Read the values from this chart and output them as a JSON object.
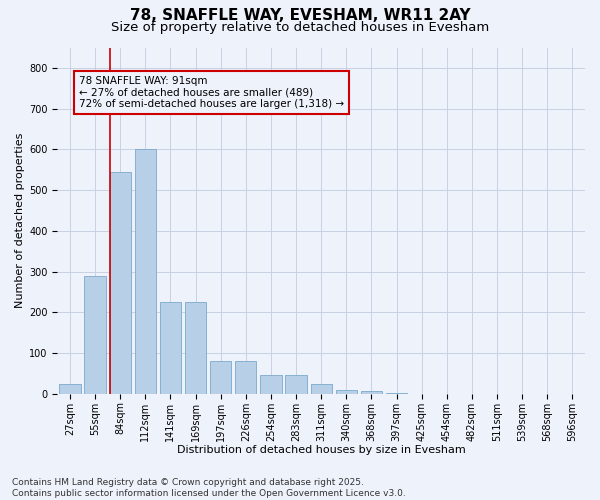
{
  "title": "78, SNAFFLE WAY, EVESHAM, WR11 2AY",
  "subtitle": "Size of property relative to detached houses in Evesham",
  "xlabel": "Distribution of detached houses by size in Evesham",
  "ylabel": "Number of detached properties",
  "categories": [
    "27sqm",
    "55sqm",
    "84sqm",
    "112sqm",
    "141sqm",
    "169sqm",
    "197sqm",
    "226sqm",
    "254sqm",
    "283sqm",
    "311sqm",
    "340sqm",
    "368sqm",
    "397sqm",
    "425sqm",
    "454sqm",
    "482sqm",
    "511sqm",
    "539sqm",
    "568sqm",
    "596sqm"
  ],
  "values": [
    25,
    290,
    545,
    600,
    225,
    225,
    80,
    80,
    45,
    45,
    25,
    10,
    7,
    3,
    0,
    0,
    0,
    0,
    0,
    0,
    0
  ],
  "bar_color": "#b8cfe8",
  "bar_edge_color": "#7aa8cc",
  "vline_x_index": 2,
  "vline_color": "#cc0000",
  "annotation_text": "78 SNAFFLE WAY: 91sqm\n← 27% of detached houses are smaller (489)\n72% of semi-detached houses are larger (1,318) →",
  "annotation_box_color": "#cc0000",
  "ylim": [
    0,
    850
  ],
  "yticks": [
    0,
    100,
    200,
    300,
    400,
    500,
    600,
    700,
    800
  ],
  "footer": "Contains HM Land Registry data © Crown copyright and database right 2025.\nContains public sector information licensed under the Open Government Licence v3.0.",
  "bg_color": "#eef2fb",
  "grid_color": "#c8d0e4",
  "title_fontsize": 11,
  "subtitle_fontsize": 9.5,
  "label_fontsize": 8,
  "tick_fontsize": 7,
  "footer_fontsize": 6.5,
  "annotation_fontsize": 7.5
}
